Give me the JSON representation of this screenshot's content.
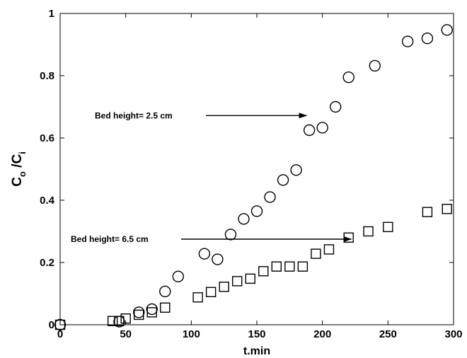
{
  "chart_data": {
    "type": "scatter",
    "title": "",
    "xlabel": "t.min",
    "ylabel_main": "C",
    "ylabel_sub1": "o",
    "ylabel_mid": " /C",
    "ylabel_sub2": "i",
    "xlim": [
      0,
      300
    ],
    "ylim": [
      0,
      1
    ],
    "xticks": [
      0,
      50,
      100,
      150,
      200,
      250,
      300
    ],
    "yticks": [
      0,
      0.2,
      0.4,
      0.6,
      0.8,
      1
    ],
    "ytick_labels": [
      "0",
      "0.2",
      "0.4",
      "0.6",
      "0.8",
      "1"
    ],
    "grid": false,
    "series": [
      {
        "marker": "circle",
        "x": [
          0,
          45,
          60,
          70,
          80,
          90,
          110,
          120,
          130,
          140,
          150,
          160,
          170,
          180,
          190,
          200,
          210,
          220,
          240,
          265,
          280,
          295
        ],
        "y": [
          0,
          0.01,
          0.04,
          0.05,
          0.107,
          0.155,
          0.228,
          0.21,
          0.29,
          0.34,
          0.365,
          0.41,
          0.465,
          0.497,
          0.625,
          0.633,
          0.7,
          0.795,
          0.832,
          0.91,
          0.92,
          0.947
        ]
      },
      {
        "marker": "square",
        "x": [
          0,
          40,
          45,
          50,
          60,
          70,
          80,
          105,
          115,
          125,
          135,
          145,
          155,
          165,
          175,
          185,
          195,
          205,
          220,
          235,
          250,
          280,
          295
        ],
        "y": [
          0,
          0.012,
          0.012,
          0.02,
          0.032,
          0.04,
          0.055,
          0.088,
          0.105,
          0.122,
          0.14,
          0.148,
          0.172,
          0.187,
          0.187,
          0.187,
          0.228,
          0.242,
          0.28,
          0.3,
          0.314,
          0.362,
          0.372
        ]
      }
    ],
    "annotations": [
      {
        "text": "Bed height= 2.5 cm",
        "x_end": 188,
        "y": 0.672
      },
      {
        "text": "Bed height= 6.5 cm",
        "x_end": 222,
        "y": 0.275
      }
    ]
  }
}
